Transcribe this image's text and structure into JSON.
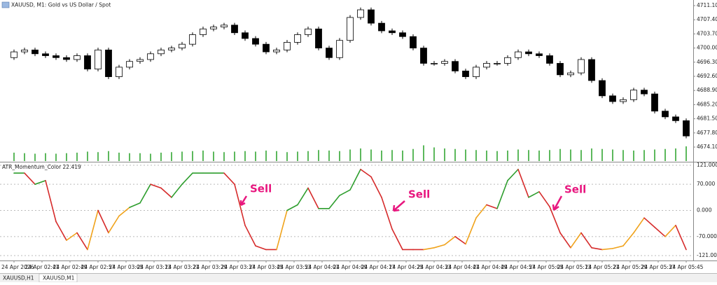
{
  "chart_data": [
    {
      "type": "candlestick",
      "title": "XAUUSD, M1:  Gold vs US Dollar / Spot",
      "x": [
        0,
        3,
        6,
        9,
        12,
        15,
        18,
        21,
        24,
        27,
        30,
        33,
        36,
        39,
        42,
        45,
        48,
        51,
        54,
        57,
        60,
        63,
        66,
        69,
        72,
        75,
        78,
        81,
        84,
        87,
        90,
        93,
        96,
        99,
        102,
        105,
        108,
        111,
        114,
        117,
        120,
        123,
        126,
        129,
        132,
        135,
        138,
        141,
        144,
        147,
        150,
        153,
        156,
        159,
        162,
        165,
        168,
        171,
        174,
        177,
        180,
        183,
        186,
        189,
        192
      ],
      "open": [
        4697.5,
        4699,
        4699.5,
        4698.5,
        4698,
        4697.5,
        4697,
        4698,
        4694.5,
        4699.5,
        4692.5,
        4695,
        4696.5,
        4697,
        4698.5,
        4699.5,
        4700,
        4701,
        4703.5,
        4705,
        4705.5,
        4706,
        4704,
        4702.5,
        4701,
        4699,
        4699.5,
        4701.5,
        4703.5,
        4705,
        4700,
        4697.5,
        4702,
        4708,
        4710,
        4706.5,
        4704.5,
        4704,
        4703,
        4700,
        4696,
        4696,
        4696.5,
        4694,
        4692.5,
        4695,
        4696,
        4696,
        4697.5,
        4699,
        4698.5,
        4698,
        4696,
        4693,
        4693.5,
        4697,
        4691.5,
        4687.5,
        4686,
        4686.5,
        4689,
        4688,
        4683.5,
        4682,
        4681
      ],
      "high": [
        4699.6,
        4700.1,
        4700.1,
        4699.1,
        4698.6,
        4698.1,
        4698.6,
        4698.6,
        4700.1,
        4700.1,
        4695.6,
        4697.1,
        4697.6,
        4699.1,
        4700.1,
        4700.6,
        4701.6,
        4704.1,
        4705.6,
        4706.1,
        4706.6,
        4706.6,
        4704.6,
        4703.1,
        4701.6,
        4700.1,
        4702.1,
        4704.1,
        4705.6,
        4705.6,
        4700.6,
        4702.6,
        4708.6,
        4710.6,
        4710.6,
        4707.1,
        4705.1,
        4704.6,
        4703.6,
        4700.6,
        4696.6,
        4697.1,
        4697.1,
        4694.6,
        4695.6,
        4696.6,
        4696.6,
        4698.1,
        4699.6,
        4699.6,
        4699.1,
        4698.6,
        4696.6,
        4694.1,
        4697.6,
        4697.6,
        4692.1,
        4688.1,
        4687.1,
        4689.6,
        4689.6,
        4688.6,
        4684.1,
        4682.6,
        4681.6
      ],
      "low": [
        4696.9,
        4698.4,
        4697.9,
        4697.4,
        4696.9,
        4696.4,
        4696.4,
        4693.9,
        4693.9,
        4691.9,
        4691.9,
        4694.4,
        4695.9,
        4696.4,
        4697.9,
        4698.9,
        4699.4,
        4700.4,
        4702.9,
        4704.4,
        4704.9,
        4703.4,
        4701.9,
        4700.4,
        4698.4,
        4698.4,
        4698.9,
        4700.9,
        4702.9,
        4699.4,
        4696.9,
        4696.9,
        4701.4,
        4707.4,
        4705.9,
        4703.9,
        4703.4,
        4702.4,
        4699.4,
        4695.4,
        4695.4,
        4695.4,
        4693.4,
        4691.9,
        4691.9,
        4694.4,
        4695.4,
        4695.4,
        4696.9,
        4697.9,
        4697.4,
        4695.4,
        4692.4,
        4692.4,
        4692.9,
        4690.9,
        4686.9,
        4685.4,
        4685.4,
        4685.9,
        4687.4,
        4682.9,
        4681.4,
        4680.4,
        4676.4
      ],
      "close": [
        4699,
        4699.5,
        4698.5,
        4698,
        4697.5,
        4697,
        4698,
        4694.5,
        4699.5,
        4692.5,
        4695,
        4696.5,
        4697,
        4698.5,
        4699.5,
        4700,
        4701,
        4703.5,
        4705,
        4705.5,
        4706,
        4704,
        4702.5,
        4701,
        4699,
        4699.5,
        4701.5,
        4703.5,
        4705,
        4700,
        4697.5,
        4702,
        4708,
        4710,
        4706.5,
        4704.5,
        4704,
        4703,
        4700,
        4696,
        4696,
        4696.5,
        4694,
        4692.5,
        4695,
        4696,
        4696,
        4697.5,
        4699,
        4698.5,
        4698,
        4696,
        4693,
        4693.5,
        4697,
        4691.5,
        4687.5,
        4686,
        4686.5,
        4689,
        4688,
        4683.5,
        4682,
        4681,
        4677
      ],
      "volumes": [
        16,
        15,
        14,
        15,
        14,
        15,
        16,
        18,
        17,
        19,
        16,
        15,
        15,
        14,
        16,
        17,
        18,
        19,
        20,
        18,
        17,
        18,
        19,
        18,
        20,
        19,
        17,
        18,
        19,
        21,
        20,
        19,
        22,
        24,
        22,
        20,
        21,
        20,
        23,
        30,
        26,
        24,
        23,
        22,
        21,
        20,
        19,
        20,
        22,
        21,
        20,
        21,
        23,
        22,
        21,
        24,
        23,
        22,
        21,
        20,
        21,
        22,
        23,
        24,
        28
      ],
      "up_color": "#ffffff",
      "down_color": "#000000",
      "volume_color": "#5cb85c",
      "xlim": [
        -4,
        194
      ],
      "xticks": [
        {
          "value": 0,
          "label": "24 Apr 2026"
        },
        {
          "value": 8,
          "label": "24 Apr 02:41"
        },
        {
          "value": 16,
          "label": "24 Apr 02:49"
        },
        {
          "value": 24,
          "label": "24 Apr 02:57"
        },
        {
          "value": 32,
          "label": "24 Apr 03:05"
        },
        {
          "value": 40,
          "label": "24 Apr 03:13"
        },
        {
          "value": 48,
          "label": "24 Apr 03:21"
        },
        {
          "value": 56,
          "label": "24 Apr 03:29"
        },
        {
          "value": 64,
          "label": "24 Apr 03:37"
        },
        {
          "value": 72,
          "label": "24 Apr 03:45"
        },
        {
          "value": 80,
          "label": "24 Apr 03:53"
        },
        {
          "value": 88,
          "label": "24 Apr 04:01"
        },
        {
          "value": 96,
          "label": "24 Apr 04:09"
        },
        {
          "value": 104,
          "label": "24 Apr 04:17"
        },
        {
          "value": 112,
          "label": "24 Apr 04:25"
        },
        {
          "value": 120,
          "label": "24 Apr 04:33"
        },
        {
          "value": 128,
          "label": "24 Apr 04:41"
        },
        {
          "value": 136,
          "label": "24 Apr 04:49"
        },
        {
          "value": 144,
          "label": "24 Apr 04:57"
        },
        {
          "value": 152,
          "label": "24 Apr 05:05"
        },
        {
          "value": 160,
          "label": "24 Apr 05:13"
        },
        {
          "value": 168,
          "label": "24 Apr 05:21"
        },
        {
          "value": 176,
          "label": "24 Apr 05:29"
        },
        {
          "value": 184,
          "label": "24 Apr 05:37"
        },
        {
          "value": 192,
          "label": "24 Apr 05:45"
        }
      ],
      "ylim": [
        4670.44,
        4712.2
      ],
      "yticks": [
        {
          "value": 4711.1,
          "label": "4711.10"
        },
        {
          "value": 4707.4,
          "label": "4707.40"
        },
        {
          "value": 4703.7,
          "label": "4703.70"
        },
        {
          "value": 4700,
          "label": "4700.00"
        },
        {
          "value": 4696.3,
          "label": "4696.30"
        },
        {
          "value": 4692.6,
          "label": "4692.60"
        },
        {
          "value": 4688.9,
          "label": "4688.90"
        },
        {
          "value": 4685.2,
          "label": "4685.20"
        },
        {
          "value": 4681.5,
          "label": "4681.50"
        },
        {
          "value": 4677.8,
          "label": "4677.80"
        },
        {
          "value": 4674.1,
          "label": "4674.10"
        }
      ]
    },
    {
      "type": "line",
      "title": "ATR_Momentum_Color 22.419",
      "values": [
        100,
        100,
        70,
        80,
        -30,
        -80,
        -60,
        -105,
        0,
        -60,
        -15,
        8,
        20,
        70,
        60,
        35,
        70,
        100,
        100,
        100,
        100,
        70,
        -40,
        -95,
        -105,
        -105,
        0,
        15,
        60,
        5,
        5,
        40,
        55,
        110,
        90,
        35,
        -50,
        -105,
        -105,
        -105,
        -100,
        -92,
        -70,
        -90,
        -20,
        15,
        5,
        80,
        110,
        35,
        50,
        10,
        -60,
        -100,
        -60,
        -100,
        -105,
        -102,
        -95,
        -60,
        -20,
        -45,
        -70,
        -40,
        -105
      ],
      "palette": [
        "#2e9e2e",
        "#d62b2b",
        "#f0a31c"
      ],
      "point_colors": [
        0,
        0,
        1,
        0,
        1,
        1,
        2,
        1,
        2,
        1,
        2,
        2,
        0,
        0,
        1,
        1,
        0,
        0,
        0,
        0,
        0,
        1,
        1,
        1,
        1,
        1,
        2,
        0,
        0,
        1,
        0,
        0,
        0,
        0,
        1,
        1,
        1,
        1,
        1,
        1,
        2,
        2,
        2,
        1,
        2,
        2,
        1,
        0,
        0,
        1,
        0,
        1,
        1,
        1,
        2,
        1,
        1,
        2,
        2,
        2,
        2,
        1,
        1,
        2,
        1
      ],
      "ylim": [
        -121,
        121
      ],
      "yticks": [
        {
          "value": 121,
          "label": "121.000"
        },
        {
          "value": 70,
          "label": "70.000"
        },
        {
          "value": 0,
          "label": "0.000"
        },
        {
          "value": -70,
          "label": "-70.000"
        },
        {
          "value": -121,
          "label": "-121.000"
        }
      ],
      "grid": true,
      "annotations": [
        {
          "text": "Sell"
        },
        {
          "text": "Sell"
        },
        {
          "text": "Sell"
        }
      ]
    }
  ],
  "tabs": [
    "XAUUSD,H1",
    "XAUUSD,M1"
  ]
}
